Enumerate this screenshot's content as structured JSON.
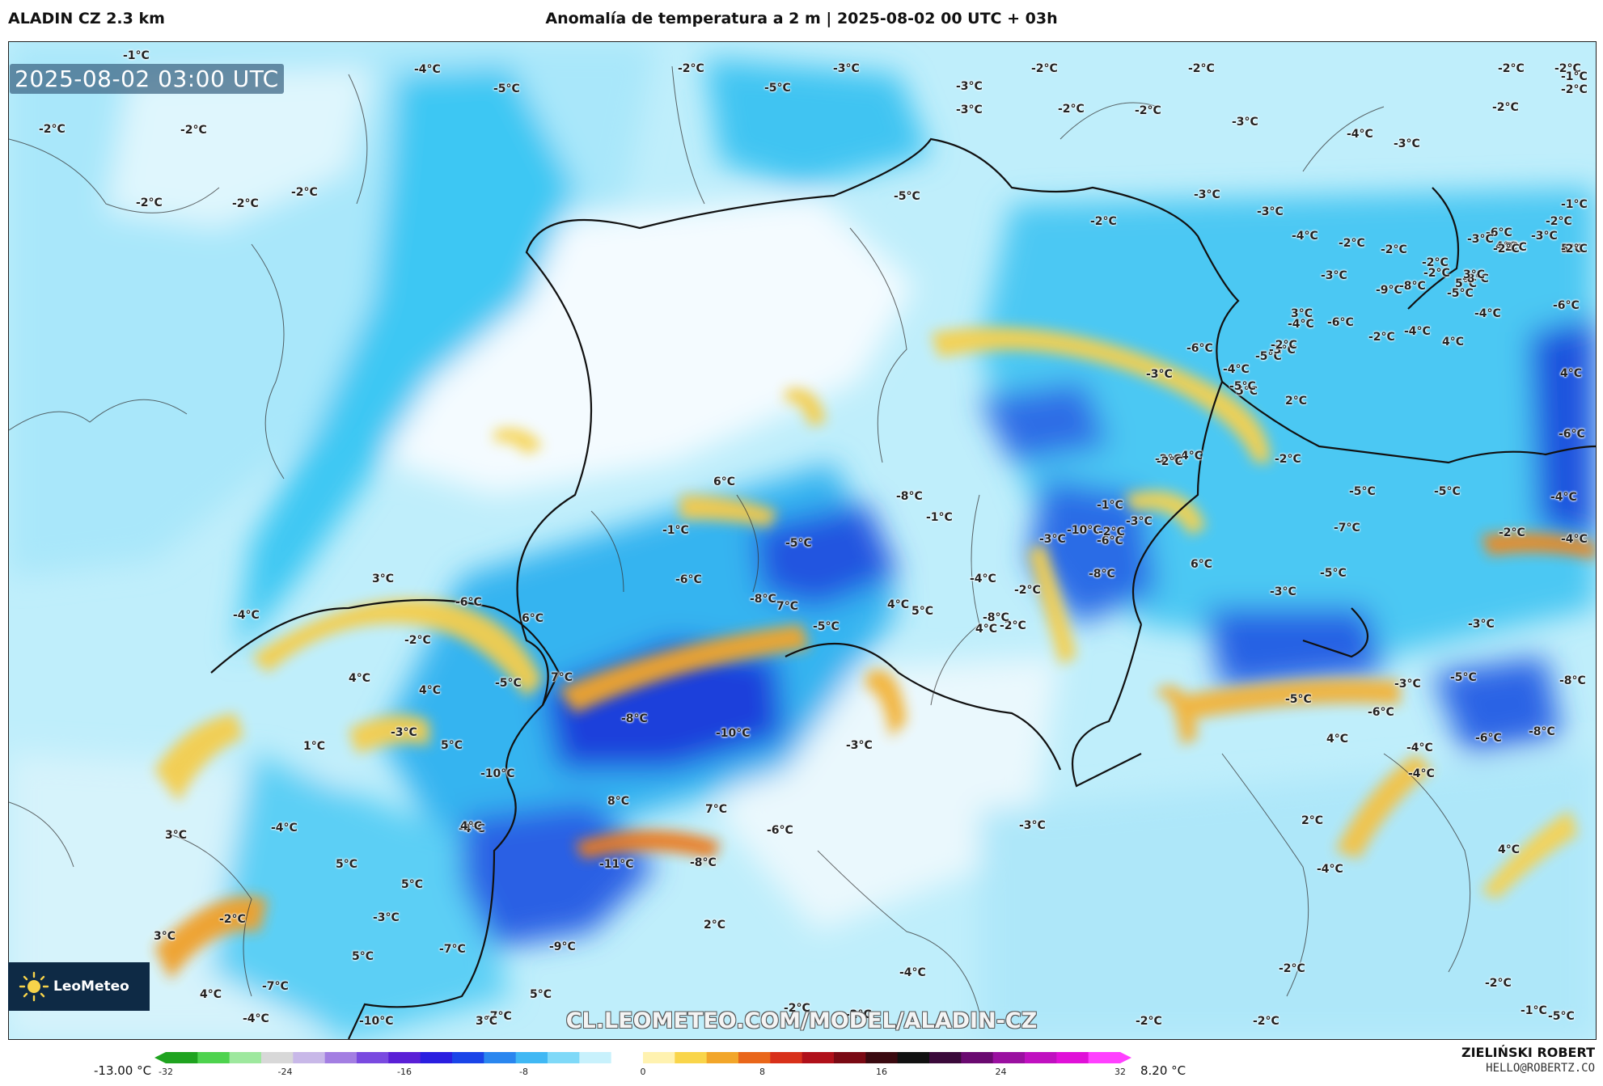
{
  "header": {
    "model": "ALADIN CZ 2.3 km",
    "title": "Anomalía de temperatura a 2 m | 2025-08-02 00 UTC + 03h"
  },
  "map": {
    "valid_time": "2025-08-02 03:00 UTC",
    "url": "CL.LEOMETEO.COM/MODEL/ALADIN-CZ",
    "logo_text": "LeoMeteo",
    "labels": [
      "-1°C",
      "-4°C",
      "-5°C",
      "-2°C",
      "-5°C",
      "-3°C",
      "-3°C",
      "-2°C",
      "-2°C",
      "-2°C",
      "-2°C",
      "-1°C",
      "-2°C",
      "-2°C",
      "-3°C",
      "-2°C",
      "-2°C",
      "-3°C",
      "-4°C",
      "-3°C",
      "-2°C",
      "-2°C",
      "-2°C",
      "-2°C",
      "-5°C",
      "-2°C",
      "-3°C",
      "-2°C",
      "-3°C",
      "-4°C",
      "-2°C",
      "-6°C",
      "-3°C",
      "-3°C",
      "-4°C",
      "6°C",
      "-1°C",
      "-5°C",
      "-8°C",
      "-10°C",
      "3°C",
      "-4°C",
      "6°C",
      "7°C",
      "-6°C",
      "-6°C",
      "-5°C",
      "-4°C",
      "4°C",
      "-8°C",
      "-2°C",
      "4°C",
      "4°C",
      "7°C",
      "-8°C",
      "-10°C",
      "-3°C",
      "-5°C",
      "1°C",
      "-3°C",
      "5°C",
      "-10°C",
      "-4°C",
      "8°C",
      "7°C",
      "-6°C",
      "3°C",
      "-4°C",
      "-11°C",
      "-8°C",
      "4°C",
      "5°C",
      "5°C",
      "-2°C",
      "-3°C",
      "3°C",
      "-7°C",
      "5°C",
      "-9°C",
      "2°C",
      "-7°C",
      "-4°C",
      "4°C",
      "-10°C",
      "5°C",
      "-7°C",
      "3°C",
      "-2°C",
      "-2°C",
      "-2°C",
      "-2°C",
      "-2°C",
      "4°C",
      "-1°C",
      "-5°C",
      "-2°C",
      "-3°C",
      "-4°C",
      "-8°C",
      "-2°C",
      "-7°C",
      "2°C",
      "-4°C",
      "4°C",
      "2°C",
      "-5°C",
      "-6°C",
      "-3°C",
      "-4°C",
      "-4°C",
      "-8°C",
      "-6°C",
      "-5°C",
      "-3°C",
      "-2°C",
      "-4°C",
      "-4°C",
      "-6°C",
      "4°C",
      "-6°C",
      "5°C",
      "-5°C",
      "-5°C",
      "-5°C",
      "-3°C",
      "6°C",
      "-6°C",
      "-8°C",
      "-3°C",
      "4°C",
      "5°C",
      "-5°C",
      "-5°C",
      "-3°C",
      "-4°C",
      "3°C",
      "-9°C",
      "-8°C",
      "-4°C",
      "4°C",
      "-5°C",
      "5°C",
      "-8°C",
      "3°C",
      "4°C",
      "-2°C",
      "-1°C",
      "-2°C",
      "-2°C",
      "-2°C",
      "-3°C",
      "-2°C",
      "-2°C",
      "-2°C",
      "-3°C",
      "-2°C",
      "-6°C",
      "-2°C",
      "-4°C",
      "-6°C",
      "-3°C",
      "-2°C",
      "-2°C",
      "-2°C",
      "-1°C",
      "-3°C",
      "-2°C",
      "-2°C",
      "-8°C",
      "4°C",
      "5°C",
      "-1°C"
    ]
  },
  "legend": {
    "min_label": "-13.00 °C",
    "max_label": "8.20 °C",
    "ticks": [
      "-32",
      "-24",
      "-16",
      "-8",
      "0",
      "8",
      "16",
      "24",
      "32"
    ]
  },
  "author": {
    "name": "ZIELIŃSKI ROBERT",
    "email": "HELLO@ROBERTZ.CO"
  },
  "colors": {
    "cold_deep": "#1436d8",
    "cold": "#2aa6f0",
    "cool": "#7fdcf7",
    "neutral": "#ffffff",
    "warm": "#f7d24a",
    "hot": "#e8620f",
    "border": "#111111"
  }
}
